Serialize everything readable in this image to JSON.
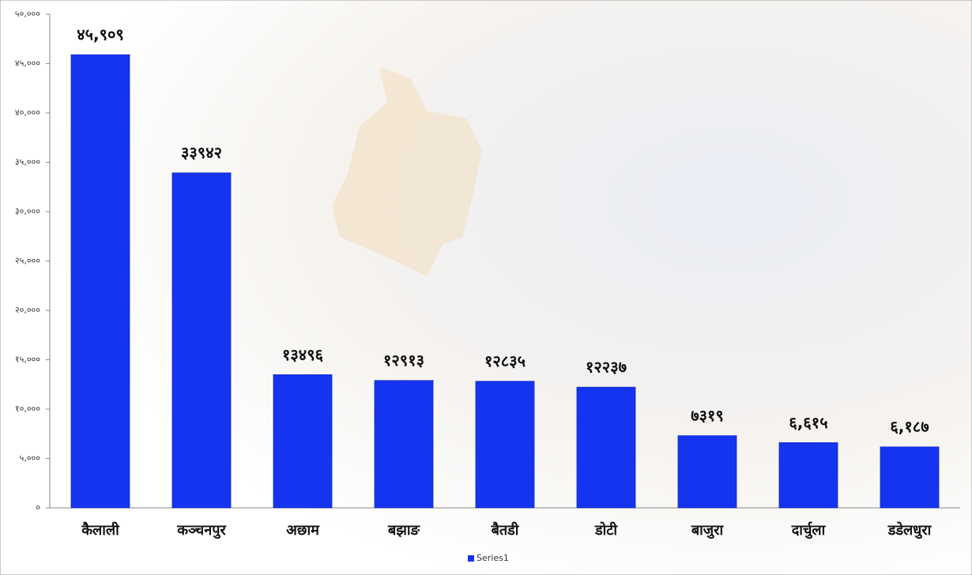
{
  "chart_data": {
    "type": "bar",
    "categories": [
      "कैलाली",
      "कञ्चनपुर",
      "अछाम",
      "बझाङ",
      "बैतडी",
      "डोटी",
      "बाजुरा",
      "दार्चुला",
      "डडेलधुरा"
    ],
    "series": [
      {
        "name": "Series1",
        "color": "#1534ef",
        "values": [
          45909,
          33942,
          13496,
          12913,
          12835,
          12237,
          7319,
          6615,
          6187
        ],
        "value_labels": [
          "४५,९०९",
          "३३९४२",
          "१३४९६",
          "१२९१३",
          "१२८३५",
          "१२२३७",
          "७३१९",
          "६,६१५",
          "६,१८७"
        ]
      }
    ],
    "ylim": [
      0,
      50000
    ],
    "yticks": [
      {
        "value": 0,
        "label": "०"
      },
      {
        "value": 5000,
        "label": "५,०००"
      },
      {
        "value": 10000,
        "label": "१०,०००"
      },
      {
        "value": 15000,
        "label": "१५,०००"
      },
      {
        "value": 20000,
        "label": "२०,०००"
      },
      {
        "value": 25000,
        "label": "२५,०००"
      },
      {
        "value": 30000,
        "label": "३०,०००"
      },
      {
        "value": 35000,
        "label": "३५,०००"
      },
      {
        "value": 40000,
        "label": "४०,०००"
      },
      {
        "value": 45000,
        "label": "४५,०००"
      },
      {
        "value": 50000,
        "label": "५०,०००"
      }
    ],
    "grid": false,
    "legend": "bottom"
  }
}
